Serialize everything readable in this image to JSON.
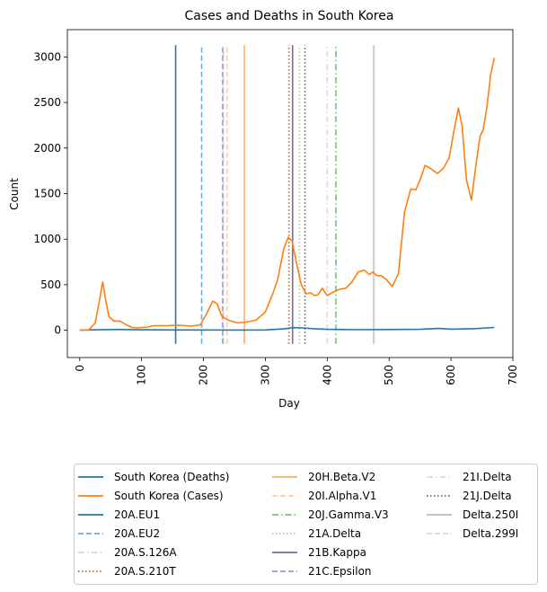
{
  "chart_data": {
    "type": "line",
    "title": "Cases and Deaths in South Korea",
    "xlabel": "Day",
    "ylabel": "Count",
    "xlim": [
      -20,
      700
    ],
    "ylim": [
      -300,
      3300
    ],
    "x_ticks": [
      0,
      100,
      200,
      300,
      400,
      500,
      600,
      700
    ],
    "y_ticks": [
      0,
      500,
      1000,
      1500,
      2000,
      2500,
      3000
    ],
    "legend_position": "below",
    "series": [
      {
        "name": "South Korea (Deaths)",
        "color": "#1f77b4",
        "x": [
          0,
          30,
          60,
          100,
          150,
          200,
          250,
          300,
          330,
          345,
          360,
          380,
          400,
          450,
          500,
          550,
          580,
          600,
          640,
          670
        ],
        "y": [
          0,
          5,
          8,
          5,
          3,
          3,
          2,
          3,
          15,
          28,
          25,
          15,
          10,
          6,
          8,
          10,
          20,
          12,
          18,
          30
        ]
      },
      {
        "name": "South Korea (Cases)",
        "color": "#ff7f0e",
        "x": [
          0,
          15,
          25,
          32,
          37,
          42,
          47,
          55,
          65,
          75,
          85,
          95,
          100,
          110,
          120,
          140,
          160,
          180,
          195,
          205,
          215,
          222,
          230,
          240,
          255,
          270,
          285,
          300,
          312,
          320,
          330,
          337,
          343,
          350,
          358,
          366,
          373,
          380,
          385,
          392,
          400,
          410,
          420,
          430,
          440,
          450,
          460,
          468,
          474,
          480,
          487,
          495,
          505,
          515,
          525,
          535,
          543,
          550,
          558,
          568,
          578,
          588,
          597,
          605,
          612,
          618,
          625,
          633,
          640,
          647,
          652,
          658,
          664,
          670
        ],
        "y": [
          0,
          5,
          80,
          330,
          530,
          330,
          150,
          100,
          100,
          60,
          30,
          25,
          30,
          35,
          50,
          50,
          55,
          45,
          60,
          180,
          320,
          290,
          150,
          110,
          80,
          90,
          110,
          200,
          400,
          560,
          900,
          1020,
          980,
          750,
          500,
          400,
          410,
          380,
          390,
          460,
          380,
          420,
          450,
          460,
          530,
          640,
          660,
          610,
          640,
          600,
          600,
          560,
          480,
          620,
          1300,
          1550,
          1540,
          1650,
          1810,
          1770,
          1720,
          1780,
          1890,
          2200,
          2440,
          2240,
          1650,
          1430,
          1800,
          2130,
          2200,
          2450,
          2800,
          2990
        ]
      }
    ],
    "variant_lines": [
      {
        "name": "20A.EU1",
        "x": 155,
        "color": "#1f77b4",
        "style": "solid"
      },
      {
        "name": "20A.EU2",
        "x": 197,
        "color": "#6baed6",
        "style": "dashed"
      },
      {
        "name": "20A.S.126A",
        "x": 232,
        "color": "#c6dbef",
        "style": "dashdot"
      },
      {
        "name": "20A.S.210T",
        "x": 338,
        "color": "#e6550d",
        "style": "dotted"
      },
      {
        "name": "20H.Beta.V2",
        "x": 266,
        "color": "#fdae6b",
        "style": "solid"
      },
      {
        "name": "20I.Alpha.V1",
        "x": 238,
        "color": "#fdd0a2",
        "style": "dashed"
      },
      {
        "name": "20J.Gamma.V3",
        "x": 414,
        "color": "#74c476",
        "style": "dashdot"
      },
      {
        "name": "21A.Delta",
        "x": 355,
        "color": "#a1d99b",
        "style": "dotted"
      },
      {
        "name": "21B.Kappa",
        "x": 344,
        "color": "#756bb1",
        "style": "solid"
      },
      {
        "name": "21C.Epsilon",
        "x": 231,
        "color": "#9e9ac8",
        "style": "dashed"
      },
      {
        "name": "21I.Delta",
        "x": 400,
        "color": "#dadaeb",
        "style": "dashdot"
      },
      {
        "name": "21J.Delta",
        "x": 364,
        "color": "#636363",
        "style": "dotted"
      },
      {
        "name": "Delta.250I",
        "x": 475,
        "color": "#bdbdbd",
        "style": "solid"
      },
      {
        "name": "Delta.299I",
        "x": 476,
        "color": "#d9d9d9",
        "style": "dashed"
      }
    ],
    "variant_line_range": [
      -150,
      3130
    ]
  }
}
